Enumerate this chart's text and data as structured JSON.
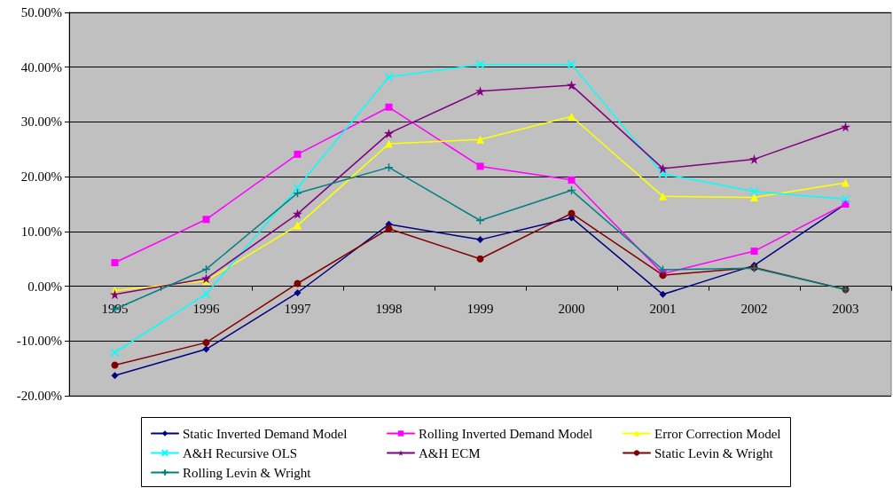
{
  "chart_data": {
    "type": "line",
    "categories": [
      "1995",
      "1996",
      "1997",
      "1998",
      "1999",
      "2000",
      "2001",
      "2002",
      "2003"
    ],
    "ylim": [
      -20,
      50
    ],
    "yticks": [
      {
        "value": -20,
        "label": "-20.00%"
      },
      {
        "value": -10,
        "label": "-10.00%"
      },
      {
        "value": 0,
        "label": "0.00%"
      },
      {
        "value": 10,
        "label": "10.00%"
      },
      {
        "value": 20,
        "label": "20.00%"
      },
      {
        "value": 30,
        "label": "30.00%"
      },
      {
        "value": 40,
        "label": "40.00%"
      },
      {
        "value": 50,
        "label": "50.00%"
      }
    ],
    "grid": "y",
    "legend": "bottom",
    "line_style": "solid",
    "series": [
      {
        "name": "Static Inverted Demand Model",
        "color": "#000080",
        "marker": "diamond",
        "values": [
          -16.3,
          -11.5,
          -1.2,
          11.3,
          8.5,
          12.5,
          -1.5,
          3.8,
          15.0
        ]
      },
      {
        "name": "Rolling Inverted Demand Model",
        "color": "#ff00ff",
        "marker": "square",
        "values": [
          4.3,
          12.2,
          24.1,
          32.7,
          21.9,
          19.4,
          2.3,
          6.4,
          15.0
        ]
      },
      {
        "name": "Error Correction Model",
        "color": "#ffff00",
        "marker": "triangle",
        "values": [
          -0.8,
          1.0,
          11.1,
          26.0,
          26.8,
          31.0,
          16.4,
          16.2,
          18.9
        ]
      },
      {
        "name": "A&H Recursive OLS",
        "color": "#00ffff",
        "marker": "x",
        "values": [
          -12.1,
          -1.4,
          18.0,
          38.2,
          40.5,
          40.5,
          20.5,
          17.3,
          15.9
        ]
      },
      {
        "name": "A&H ECM",
        "color": "#800080",
        "marker": "star",
        "values": [
          -1.5,
          1.4,
          13.2,
          27.9,
          35.6,
          36.7,
          21.5,
          23.2,
          29.1
        ]
      },
      {
        "name": "Static Levin & Wright",
        "color": "#800000",
        "marker": "circle",
        "values": [
          -14.4,
          -10.3,
          0.5,
          10.5,
          5.0,
          13.3,
          2.0,
          3.4,
          -0.6
        ]
      },
      {
        "name": "Rolling Levin & Wright",
        "color": "#008080",
        "marker": "cross",
        "values": [
          -4.2,
          3.1,
          17.0,
          21.7,
          12.0,
          17.5,
          3.0,
          3.3,
          -0.6
        ]
      }
    ]
  }
}
